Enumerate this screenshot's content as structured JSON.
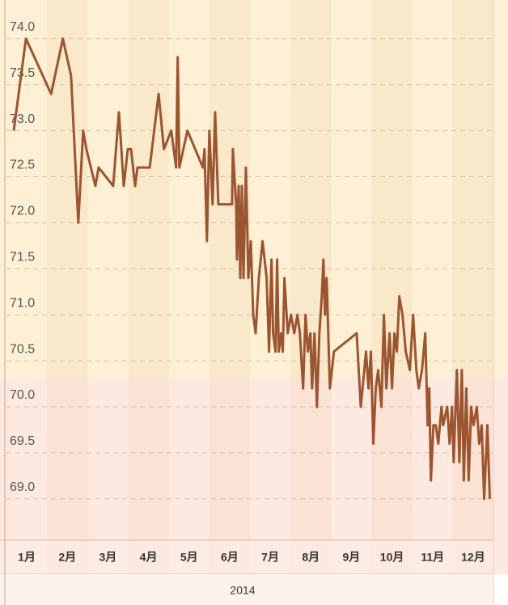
{
  "chart_data": {
    "type": "line",
    "color": "#9b5530",
    "grid": true,
    "xlabel": "2014",
    "xlim": [
      0,
      12
    ],
    "ylim": [
      68.55,
      74.42
    ],
    "xticks": [
      {
        "value": 0.5,
        "label": "1月"
      },
      {
        "value": 1.5,
        "label": "2月"
      },
      {
        "value": 2.5,
        "label": "3月"
      },
      {
        "value": 3.5,
        "label": "4月"
      },
      {
        "value": 4.5,
        "label": "5月"
      },
      {
        "value": 5.5,
        "label": "6月"
      },
      {
        "value": 6.5,
        "label": "7月"
      },
      {
        "value": 7.5,
        "label": "8月"
      },
      {
        "value": 8.5,
        "label": "9月"
      },
      {
        "value": 9.5,
        "label": "10月"
      },
      {
        "value": 10.5,
        "label": "11月"
      },
      {
        "value": 11.5,
        "label": "12月"
      }
    ],
    "yticks": [
      {
        "value": 69,
        "label": "69.0"
      },
      69.5,
      {
        "value": 70,
        "label": "70.0"
      },
      70.5,
      {
        "value": 71,
        "label": "71.0"
      },
      71.5,
      {
        "value": 72,
        "label": "72.0"
      },
      72.5,
      {
        "value": 73,
        "label": "73.0"
      },
      73.5,
      {
        "value": 74,
        "label": "74.0"
      }
    ],
    "x": [
      0.18,
      0.48,
      1.1,
      1.39,
      1.59,
      1.77,
      1.89,
      1.97,
      2.19,
      2.27,
      2.63,
      2.77,
      2.89,
      2.99,
      3.07,
      3.17,
      3.23,
      3.53,
      3.75,
      3.88,
      4.06,
      4.18,
      4.22,
      4.26,
      4.46,
      4.84,
      4.88,
      4.94,
      5.0,
      5.08,
      5.14,
      5.22,
      5.56,
      5.58,
      5.66,
      5.68,
      5.72,
      5.76,
      5.8,
      5.84,
      5.9,
      5.96,
      6.02,
      6.08,
      6.14,
      6.22,
      6.31,
      6.41,
      6.47,
      6.53,
      6.57,
      6.63,
      6.67,
      6.71,
      6.77,
      6.81,
      6.85,
      6.93,
      7.01,
      7.09,
      7.17,
      7.23,
      7.31,
      7.37,
      7.43,
      7.49,
      7.53,
      7.59,
      7.65,
      7.71,
      7.77,
      7.81,
      7.85,
      7.89,
      7.93,
      7.97,
      8.07,
      8.63,
      8.73,
      8.86,
      8.92,
      8.98,
      9.04,
      9.1,
      9.16,
      9.24,
      9.3,
      9.36,
      9.44,
      9.5,
      9.56,
      9.62,
      9.68,
      9.76,
      9.84,
      9.94,
      10.02,
      10.1,
      10.16,
      10.24,
      10.32,
      10.38,
      10.42,
      10.46,
      10.52,
      10.58,
      10.64,
      10.72,
      10.76,
      10.86,
      10.92,
      10.98,
      11.02,
      11.1,
      11.16,
      11.22,
      11.27,
      11.33,
      11.39,
      11.45,
      11.51,
      11.59,
      11.65,
      11.71,
      11.77,
      11.85,
      11.91
    ],
    "values": [
      73.0,
      74.0,
      73.4,
      74.0,
      73.6,
      72.0,
      73.0,
      72.8,
      72.4,
      72.6,
      72.4,
      73.2,
      72.4,
      72.8,
      72.8,
      72.4,
      72.6,
      72.6,
      73.4,
      72.8,
      73.0,
      72.6,
      73.8,
      72.6,
      73.0,
      72.6,
      72.8,
      71.8,
      73.0,
      72.2,
      73.2,
      72.2,
      72.2,
      72.8,
      72.2,
      71.6,
      72.4,
      71.4,
      72.4,
      71.4,
      72.6,
      71.4,
      71.8,
      71.0,
      70.8,
      71.4,
      71.8,
      71.4,
      70.6,
      71.6,
      70.8,
      70.6,
      71.6,
      70.6,
      70.8,
      70.6,
      71.4,
      70.8,
      71.0,
      70.8,
      71.0,
      70.8,
      70.2,
      71.0,
      70.6,
      70.8,
      70.2,
      70.8,
      70.0,
      70.8,
      71.2,
      71.6,
      71.0,
      71.4,
      70.8,
      70.2,
      70.6,
      70.8,
      70.0,
      70.6,
      70.2,
      70.6,
      69.6,
      70.2,
      70.4,
      70.0,
      71.0,
      70.2,
      70.8,
      70.2,
      70.8,
      70.6,
      71.2,
      71.0,
      70.6,
      70.4,
      71.0,
      70.4,
      70.2,
      70.4,
      70.8,
      69.8,
      70.2,
      69.2,
      69.8,
      69.8,
      69.6,
      70.0,
      69.8,
      70.0,
      69.6,
      70.0,
      69.4,
      70.4,
      69.4,
      70.4,
      69.2,
      70.2,
      69.2,
      70.0,
      69.8,
      70.0,
      69.6,
      69.8,
      69.0,
      69.8,
      69.0
    ]
  }
}
